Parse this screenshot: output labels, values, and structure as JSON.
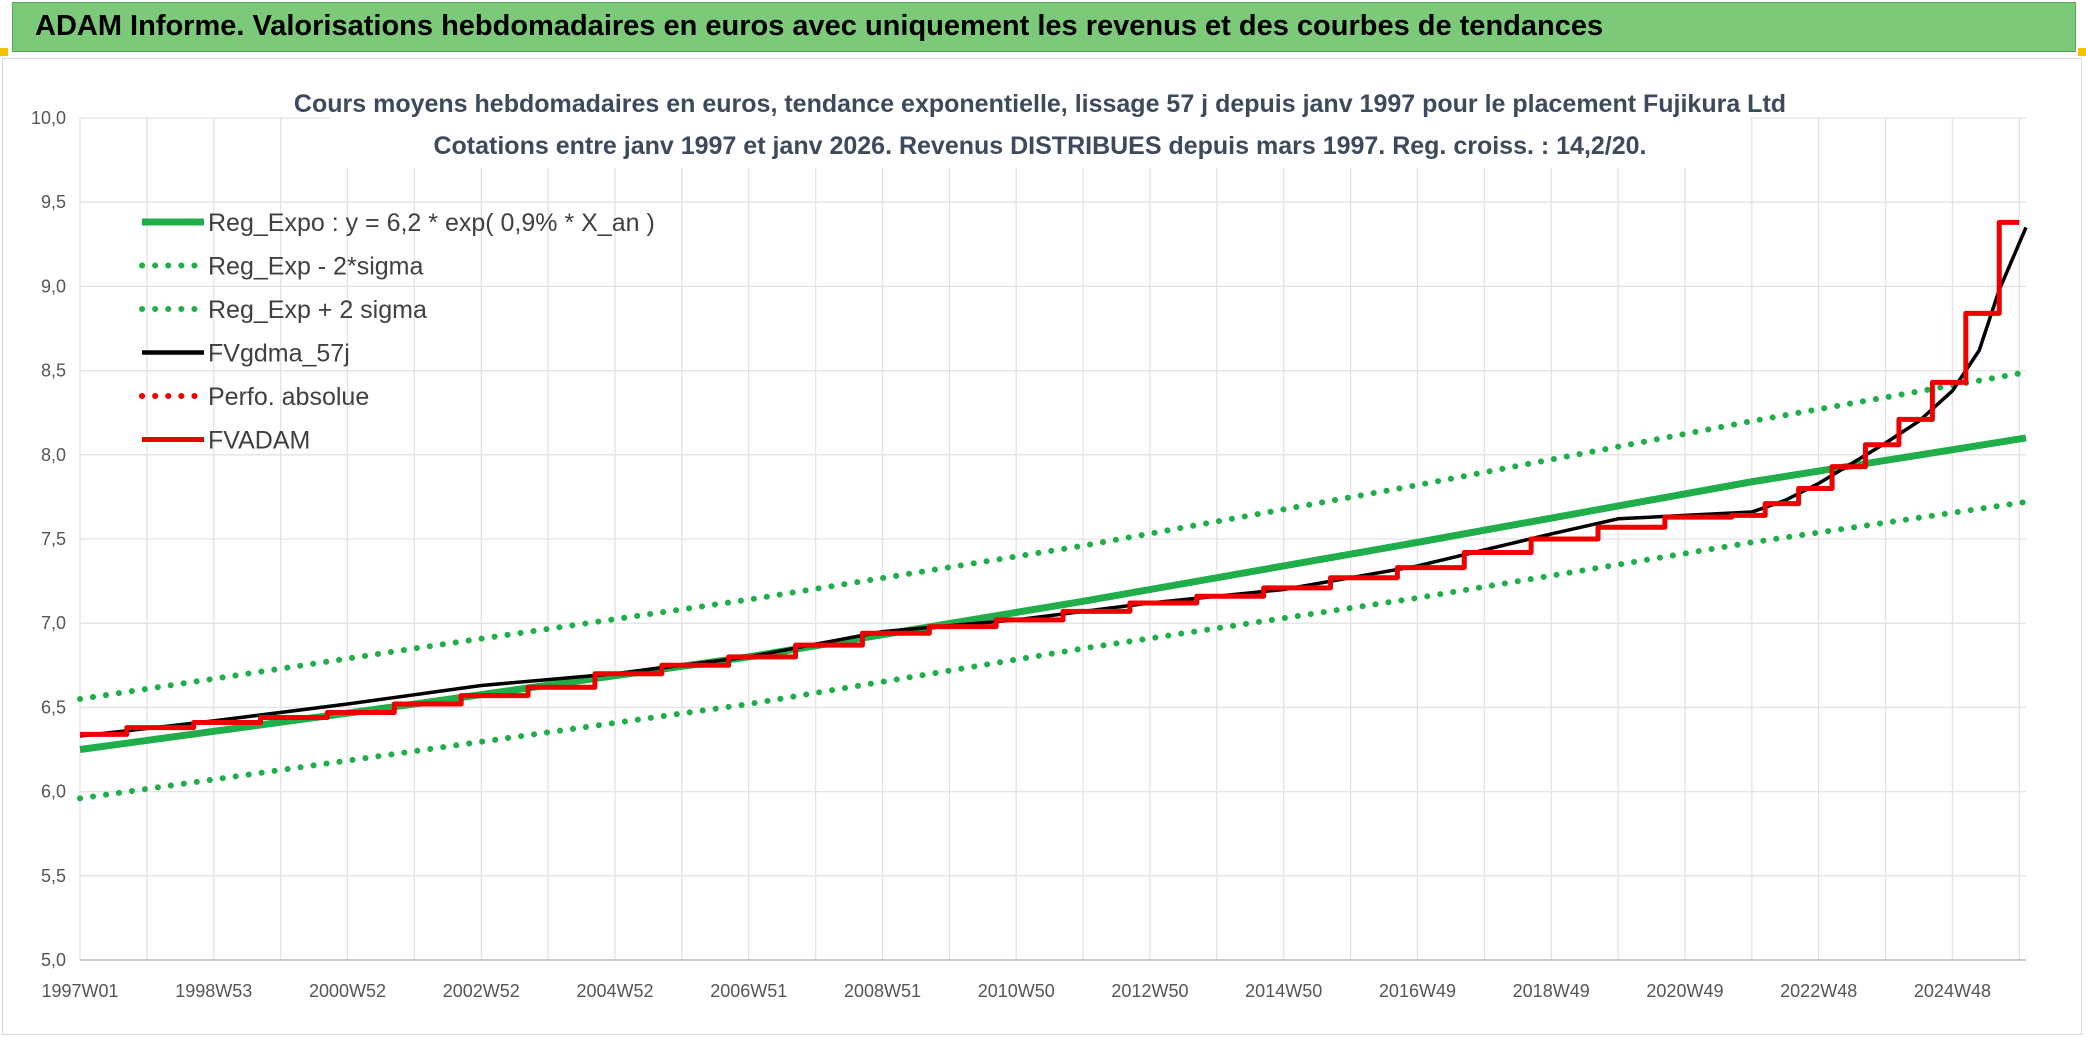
{
  "banner": {
    "title": "ADAM Informe. Valorisations hebdomadaires en euros avec uniquement les revenus et des courbes de tendances"
  },
  "colors": {
    "banner_bg": "#7dc97a",
    "green_trend": "#1fae4a",
    "black_series": "#000000",
    "red_series": "#ee0000",
    "grid": "#e3e3e3"
  },
  "chart_data": {
    "type": "line",
    "title": "Cours moyens hebdomadaires en euros, tendance exponentielle, lissage 57 j depuis janv 1997 pour le placement Fujikura Ltd",
    "subtitle": "Cotations entre janv 1997 et janv 2026. Revenus DISTRIBUES depuis mars 1997. Reg. croiss. : 14,2/20.",
    "xlabel": "",
    "ylabel": "",
    "x_range": [
      1997.0,
      2026.1
    ],
    "ylim": [
      5.0,
      10.0
    ],
    "y_ticks": [
      "5,0",
      "5,5",
      "6,0",
      "6,5",
      "7,0",
      "7,5",
      "8,0",
      "8,5",
      "9,0",
      "9,5",
      "10,0"
    ],
    "x_ticks": [
      {
        "label": "1997W01",
        "x": 1997.0
      },
      {
        "label": "1998W53",
        "x": 1999.0
      },
      {
        "label": "2000W52",
        "x": 2001.0
      },
      {
        "label": "2002W52",
        "x": 2003.0
      },
      {
        "label": "2004W52",
        "x": 2005.0
      },
      {
        "label": "2006W51",
        "x": 2007.0
      },
      {
        "label": "2008W51",
        "x": 2009.0
      },
      {
        "label": "2010W50",
        "x": 2011.0
      },
      {
        "label": "2012W50",
        "x": 2013.0
      },
      {
        "label": "2014W50",
        "x": 2015.0
      },
      {
        "label": "2016W49",
        "x": 2017.0
      },
      {
        "label": "2018W49",
        "x": 2019.0
      },
      {
        "label": "2020W49",
        "x": 2021.0
      },
      {
        "label": "2022W48",
        "x": 2023.0
      },
      {
        "label": "2024W48",
        "x": 2025.0
      }
    ],
    "grid": true,
    "legend_position": "top-left",
    "series": [
      {
        "name": "Reg_Expo : y = 6,2 * exp( 0,9% *  X_an )",
        "style": "solid",
        "color": "#1fae4a",
        "x": [
          1997.0,
          2002.0,
          2007.0,
          2012.0,
          2017.0,
          2022.0,
          2026.1
        ],
        "y": [
          6.25,
          6.52,
          6.8,
          7.13,
          7.48,
          7.84,
          8.1
        ]
      },
      {
        "name": "Reg_Exp - 2*sigma",
        "style": "dotted",
        "color": "#1fae4a",
        "x": [
          1997.0,
          2002.0,
          2007.0,
          2012.0,
          2017.0,
          2022.0,
          2026.1
        ],
        "y": [
          5.96,
          6.24,
          6.52,
          6.85,
          7.15,
          7.48,
          7.72
        ]
      },
      {
        "name": "Reg_Exp + 2 sigma",
        "style": "dotted",
        "color": "#1fae4a",
        "x": [
          1997.0,
          2002.0,
          2007.0,
          2012.0,
          2017.0,
          2022.0,
          2026.1
        ],
        "y": [
          6.55,
          6.85,
          7.14,
          7.46,
          7.82,
          8.2,
          8.49
        ]
      },
      {
        "name": "FVgdma_57j",
        "style": "solid",
        "color": "#000000",
        "x": [
          1997.0,
          1999.0,
          2001.0,
          2003.0,
          2005.0,
          2007.0,
          2009.0,
          2011.0,
          2013.0,
          2015.0,
          2017.0,
          2019.0,
          2020.0,
          2021.0,
          2022.0,
          2022.5,
          2023.0,
          2023.5,
          2024.0,
          2024.5,
          2025.0,
          2025.4,
          2025.7,
          2026.1
        ],
        "y": [
          6.33,
          6.42,
          6.52,
          6.63,
          6.7,
          6.8,
          6.95,
          7.02,
          7.12,
          7.2,
          7.34,
          7.53,
          7.62,
          7.64,
          7.66,
          7.73,
          7.83,
          7.95,
          8.07,
          8.2,
          8.38,
          8.62,
          8.98,
          9.35
        ]
      },
      {
        "name": "Perfo. absolue",
        "style": "dotted",
        "color": "#ee0000",
        "x": [],
        "y": []
      },
      {
        "name": "FVADAM",
        "style": "step",
        "color": "#ee0000",
        "x": [
          1997.0,
          1997.7,
          1998.7,
          1999.7,
          2000.7,
          2001.7,
          2002.7,
          2003.7,
          2004.7,
          2005.7,
          2006.7,
          2007.7,
          2008.7,
          2009.7,
          2010.7,
          2011.7,
          2012.7,
          2013.7,
          2014.7,
          2015.7,
          2016.7,
          2017.7,
          2018.7,
          2019.7,
          2020.7,
          2021.7,
          2022.2,
          2022.7,
          2023.2,
          2023.7,
          2024.2,
          2024.7,
          2025.2,
          2025.7,
          2026.0
        ],
        "y": [
          6.34,
          6.38,
          6.41,
          6.44,
          6.47,
          6.52,
          6.57,
          6.62,
          6.7,
          6.75,
          6.8,
          6.87,
          6.94,
          6.98,
          7.02,
          7.07,
          7.12,
          7.16,
          7.21,
          7.27,
          7.33,
          7.42,
          7.5,
          7.57,
          7.63,
          7.64,
          7.71,
          7.8,
          7.93,
          8.06,
          8.21,
          8.43,
          8.84,
          9.38,
          9.38
        ]
      }
    ]
  }
}
